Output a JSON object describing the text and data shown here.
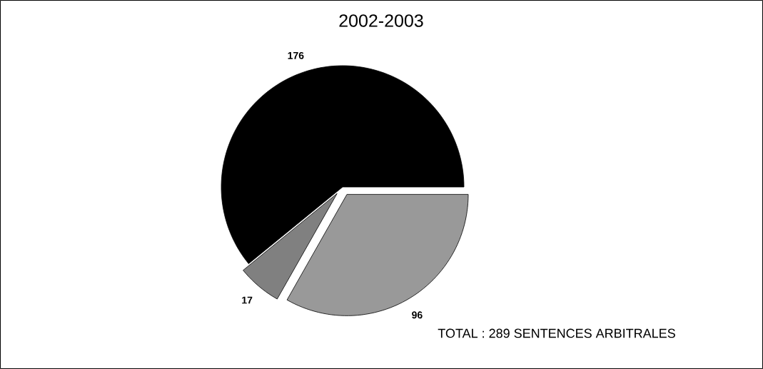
{
  "chart_data": {
    "type": "pie",
    "title": "2002-2003",
    "categories": [
      null,
      null,
      null
    ],
    "values": [
      176,
      17,
      96
    ],
    "colors": [
      "#000000",
      "#808080",
      "#999999"
    ],
    "data_labels": true,
    "annotations": [
      "TOTAL : 289 SENTENCES ARBITRALES"
    ]
  }
}
